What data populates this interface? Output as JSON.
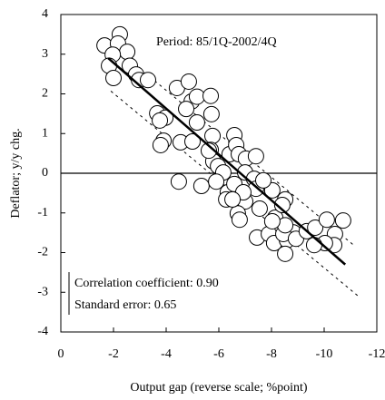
{
  "chart_data": {
    "type": "scatter",
    "x_label": "Output gap (reverse scale; %point)",
    "y_label": "Deflator; y/y chg.",
    "annotations": [
      "Period: 85/1Q-2002/4Q",
      "Correlation coefficient: 0.90",
      "Standard error: 0.65"
    ],
    "xlim": [
      0,
      -12
    ],
    "xticks": [
      0,
      -2,
      -4,
      -6,
      -8,
      -10,
      -12
    ],
    "x_reversed": true,
    "ylim": [
      -4,
      4
    ],
    "yticks": [
      -4,
      -3,
      -2,
      -1,
      0,
      1,
      2,
      3,
      4
    ],
    "marker_fill": "#ffffff",
    "color": "#000000",
    "x": [
      -1.66,
      -2.24,
      -2.17,
      -2.52,
      -1.97,
      -2.62,
      -2.86,
      -1.83,
      -2.0,
      -2.97,
      -3.31,
      -4.41,
      -4.86,
      -4.97,
      -5.17,
      -3.66,
      -3.97,
      -3.76,
      -4.76,
      -5.69,
      -5.72,
      -5.17,
      -3.9,
      -4.55,
      -5.0,
      -3.79,
      -5.76,
      -5.69,
      -5.79,
      -5.97,
      -6.41,
      -6.59,
      -6.66,
      -6.76,
      -7.03,
      -7.41,
      -7.0,
      -6.17,
      -5.34,
      -5.9,
      -6.34,
      -6.59,
      -6.79,
      -7.34,
      -6.28,
      -7.0,
      -6.72,
      -6.79,
      -7.55,
      -8.52,
      -8.14,
      -7.45,
      -7.9,
      -8.1,
      -8.59,
      -8.83,
      -8.45,
      -8.52,
      -8.93,
      -9.34,
      -9.66,
      -10.1,
      -10.41,
      -10.72,
      -10.38,
      -10.03,
      -9.62,
      -8.03,
      -7.41,
      -5.62,
      -4.48,
      -7.69,
      -8.41,
      -8.52,
      -8.03,
      -6.93,
      -6.52
    ],
    "values": [
      3.22,
      3.5,
      3.27,
      3.06,
      2.99,
      2.71,
      2.49,
      2.71,
      2.4,
      2.35,
      2.35,
      2.15,
      2.31,
      1.81,
      1.93,
      1.51,
      1.4,
      1.33,
      1.62,
      1.95,
      1.49,
      1.28,
      0.82,
      0.78,
      0.8,
      0.71,
      0.94,
      0.59,
      0.3,
      0.18,
      0.48,
      0.96,
      0.71,
      0.48,
      0.37,
      0.43,
      0.02,
      0.02,
      -0.32,
      -0.21,
      -0.48,
      -0.27,
      -0.62,
      -0.14,
      -0.66,
      -0.71,
      -1.01,
      -1.17,
      -0.89,
      -0.66,
      -1.12,
      -1.62,
      -1.53,
      -1.76,
      -1.69,
      -1.49,
      -1.53,
      -2.03,
      -1.65,
      -1.46,
      -1.37,
      -1.17,
      -1.53,
      -1.19,
      -1.81,
      -1.76,
      -1.81,
      -0.43,
      -0.39,
      0.57,
      -0.21,
      -0.18,
      -0.8,
      -1.31,
      -1.21,
      -0.48,
      -0.66
    ],
    "fit_line": {
      "x": [
        -1.8,
        -10.8
      ],
      "values": [
        2.9,
        -2.3
      ]
    },
    "bands": [
      {
        "x": [
          -1.7,
          -11.1
        ],
        "values": [
          3.35,
          -1.8
        ]
      },
      {
        "x": [
          -1.9,
          -11.3
        ],
        "values": [
          2.07,
          -3.1
        ]
      }
    ]
  }
}
